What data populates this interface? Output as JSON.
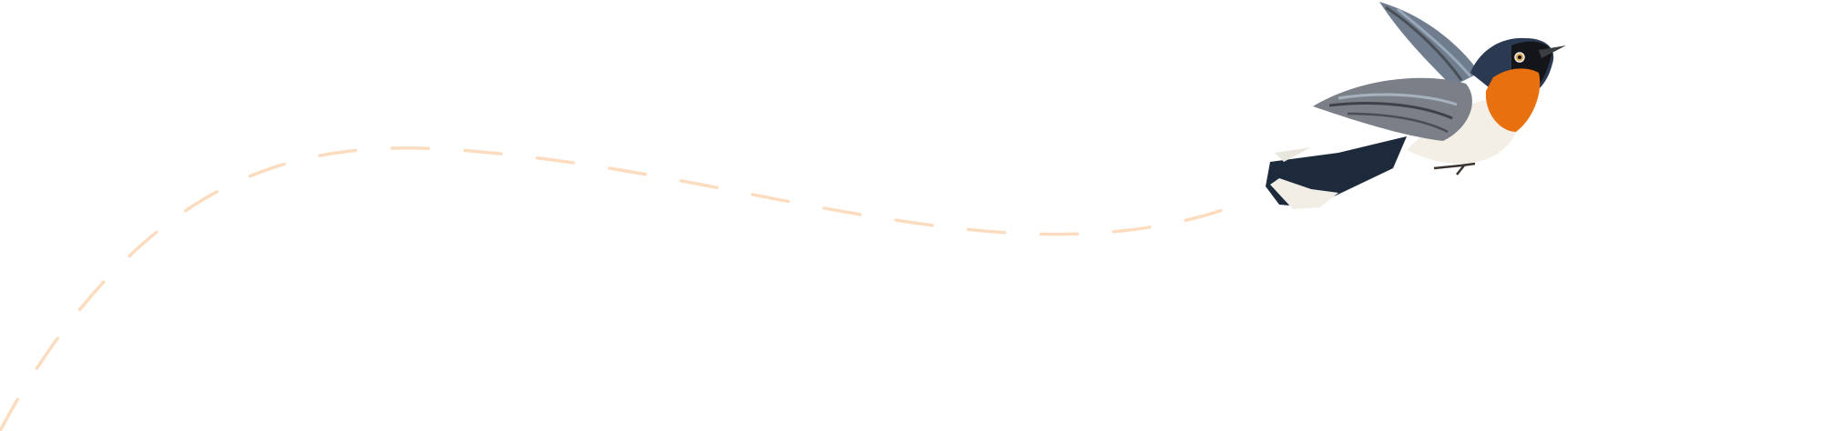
{
  "illustration": {
    "subject": "bird-in-flight",
    "colors": {
      "path_dash": "#fcdcbf",
      "bird_head": "#2b3a52",
      "bird_throat": "#e8700e",
      "bird_belly": "#f3efe6",
      "bird_wing": "#7b8088",
      "bird_tail": "#1d2a3c"
    }
  }
}
